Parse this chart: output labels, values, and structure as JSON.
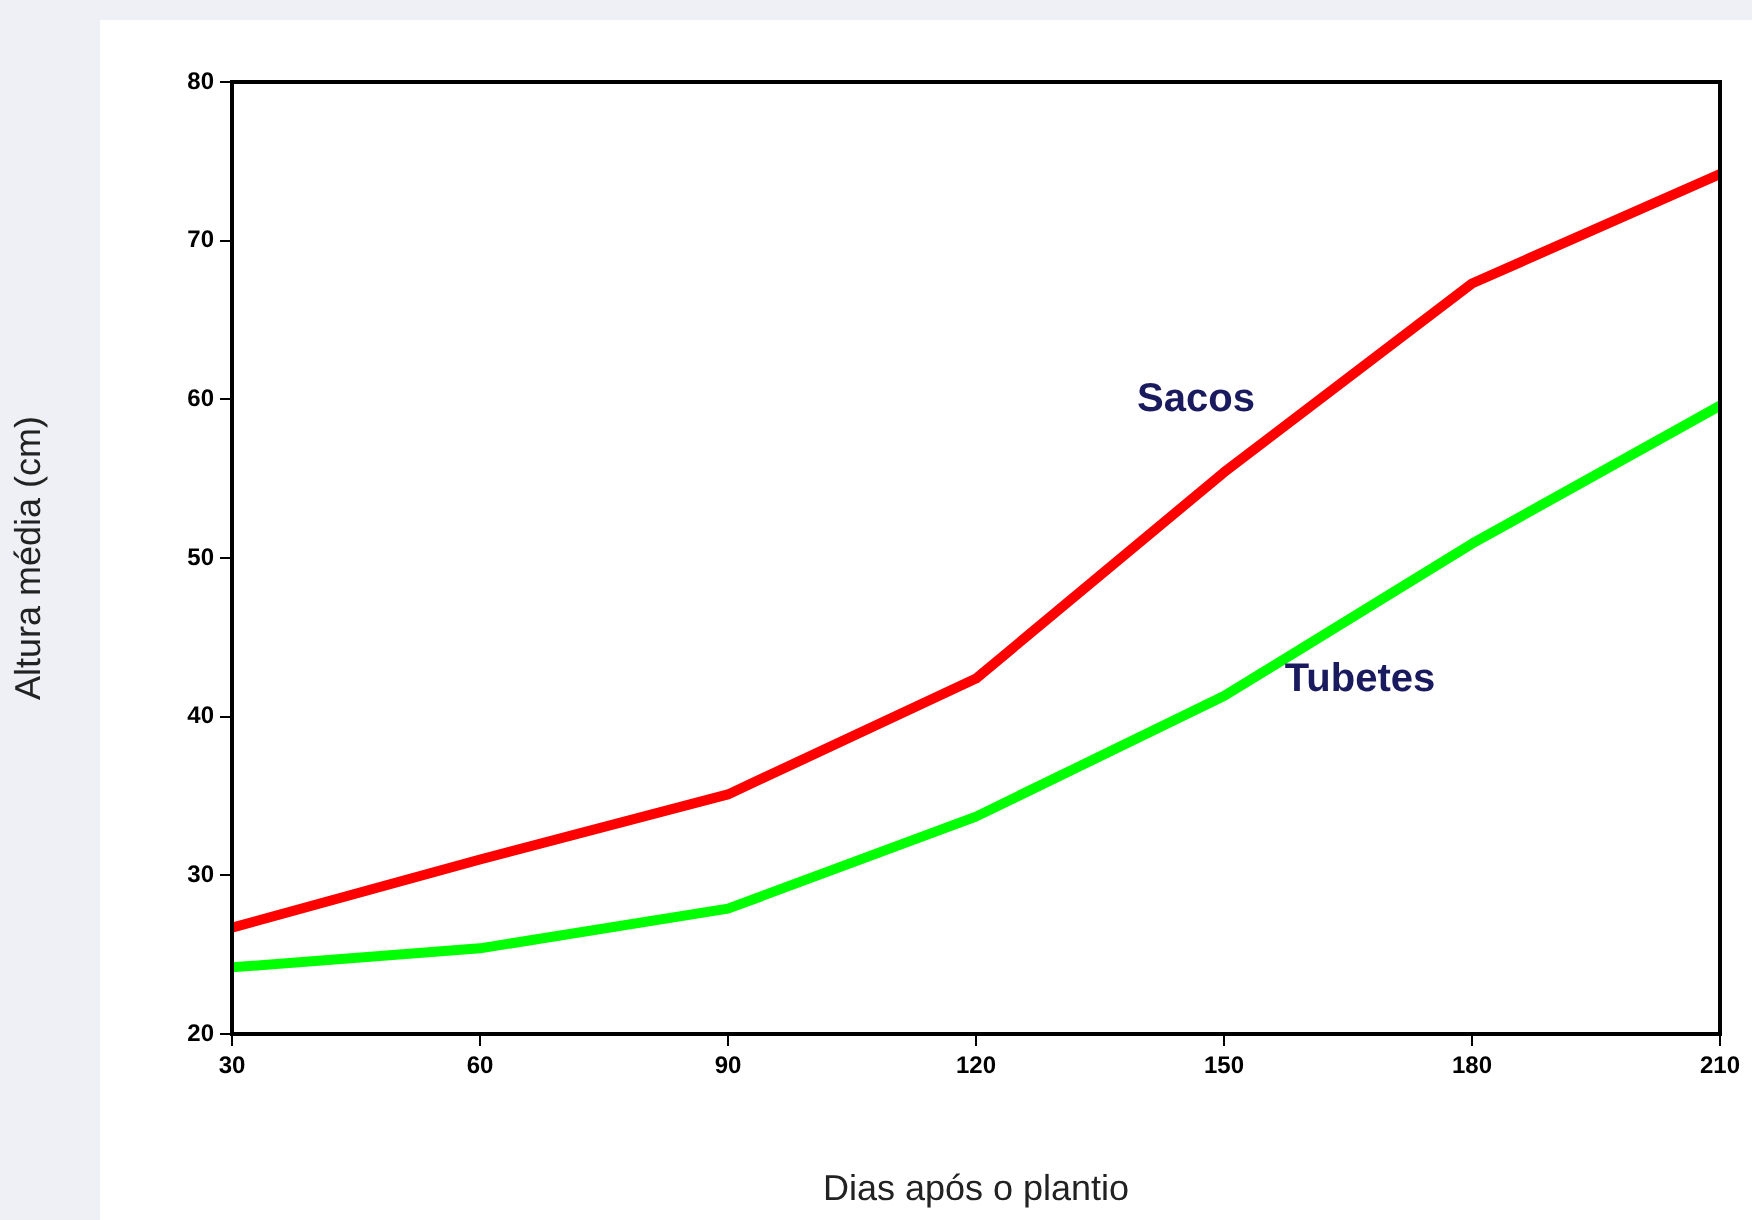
{
  "chart_data": {
    "type": "line",
    "xlabel": "Dias após o plantio",
    "ylabel": "Altura média (cm)",
    "x": [
      30,
      60,
      90,
      120,
      150,
      180,
      210
    ],
    "series": [
      {
        "name": "Sacos",
        "color": "#ff0000",
        "values": [
          26.7,
          31,
          35.1,
          42.4,
          55.4,
          67.3,
          74.2
        ]
      },
      {
        "name": "Tubetes",
        "color": "#00ff00",
        "values": [
          24.2,
          25.4,
          27.9,
          33.7,
          41.3,
          50.9,
          59.6
        ]
      }
    ],
    "xlim": [
      30,
      210
    ],
    "xticks": [
      30,
      60,
      90,
      120,
      150,
      180,
      210
    ],
    "ylim": [
      20,
      80
    ],
    "yticks": [
      20,
      30,
      40,
      50,
      60,
      70,
      80
    ],
    "grid": false,
    "legend": false,
    "marker": "none",
    "line_style": "solid"
  }
}
